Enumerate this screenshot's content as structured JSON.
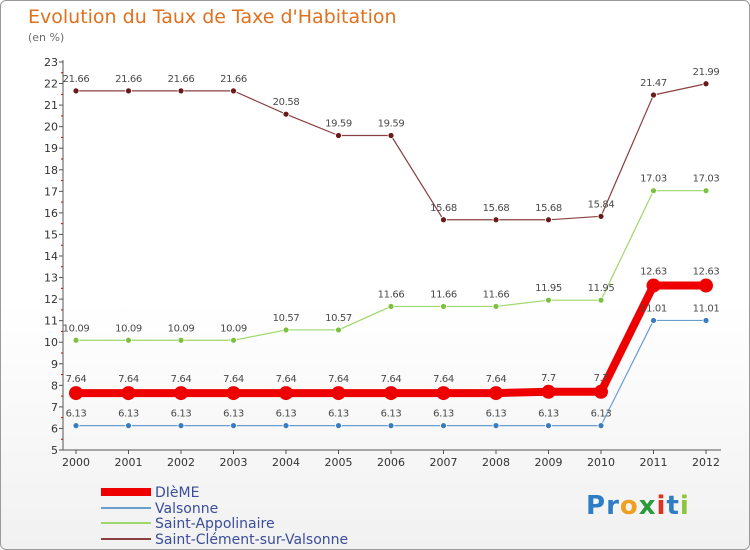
{
  "header": {
    "title": "Evolution du Taux de Taxe d'Habitation",
    "subtitle": "(en %)"
  },
  "logo": {
    "text": "Proxiti",
    "letters": [
      {
        "ch": "P",
        "color": "#2e7dc5"
      },
      {
        "ch": "r",
        "color": "#2e7dc5"
      },
      {
        "ch": "o",
        "color": "#f0a020"
      },
      {
        "ch": "x",
        "color": "#2a9a3a"
      },
      {
        "ch": "i",
        "color": "#e03020"
      },
      {
        "ch": "t",
        "color": "#2e7dc5"
      },
      {
        "ch": "i",
        "color": "#8cc63f"
      }
    ]
  },
  "chart_data": {
    "type": "line",
    "title": "Evolution du Taux de Taxe d'Habitation",
    "subtitle": "(en %)",
    "x": [
      "2000",
      "2001",
      "2002",
      "2003",
      "2004",
      "2005",
      "2006",
      "2007",
      "2008",
      "2009",
      "2010",
      "2011",
      "2012"
    ],
    "ylim": [
      5,
      23
    ],
    "yticks": [
      5,
      6,
      7,
      8,
      9,
      10,
      11,
      12,
      13,
      14,
      15,
      16,
      17,
      18,
      19,
      20,
      21,
      22,
      23
    ],
    "grid": false,
    "legend": "bottom-left",
    "series": [
      {
        "name": "DIèME",
        "color": "#ee0000",
        "marker": "#ee0000",
        "width": 8,
        "radius": 7,
        "values": [
          7.64,
          7.64,
          7.64,
          7.64,
          7.64,
          7.64,
          7.64,
          7.64,
          7.64,
          7.7,
          7.7,
          12.63,
          12.63
        ],
        "labels": [
          "7.64",
          "7.64",
          "7.64",
          "7.64",
          "7.64",
          "7.64",
          "7.64",
          "7.64",
          "7.64",
          "7.7",
          "7.7",
          "12.63",
          "12.63"
        ]
      },
      {
        "name": "Valsonne",
        "color": "#6a9ecf",
        "marker": "#3a7cc0",
        "width": 1.2,
        "radius": 3,
        "values": [
          6.13,
          6.13,
          6.13,
          6.13,
          6.13,
          6.13,
          6.13,
          6.13,
          6.13,
          6.13,
          6.13,
          11.01,
          11.01
        ],
        "labels": [
          "6.13",
          "6.13",
          "6.13",
          "6.13",
          "6.13",
          "6.13",
          "6.13",
          "6.13",
          "6.13",
          "6.13",
          "6.13",
          "11.01",
          "11.01"
        ]
      },
      {
        "name": "Saint-Appolinaire",
        "color": "#9ed86a",
        "marker": "#7cc040",
        "width": 1.2,
        "radius": 3,
        "values": [
          10.09,
          10.09,
          10.09,
          10.09,
          10.57,
          10.57,
          11.66,
          11.66,
          11.66,
          11.95,
          11.95,
          17.03,
          17.03
        ],
        "labels": [
          "10.09",
          "10.09",
          "10.09",
          "10.09",
          "10.57",
          "10.57",
          "11.66",
          "11.66",
          "11.66",
          "11.95",
          "11.95",
          "17.03",
          "17.03"
        ]
      },
      {
        "name": "Saint-Clément-sur-Valsonne",
        "color": "#8a4040",
        "marker": "#6b1a1a",
        "width": 1.2,
        "radius": 3,
        "values": [
          21.66,
          21.66,
          21.66,
          21.66,
          20.58,
          19.59,
          19.59,
          15.68,
          15.68,
          15.68,
          15.84,
          21.47,
          21.99
        ],
        "labels": [
          "21.66",
          "21.66",
          "21.66",
          "21.66",
          "20.58",
          "19.59",
          "19.59",
          "15.68",
          "15.68",
          "15.68",
          "15.84",
          "21.47",
          "21.99"
        ]
      }
    ]
  }
}
